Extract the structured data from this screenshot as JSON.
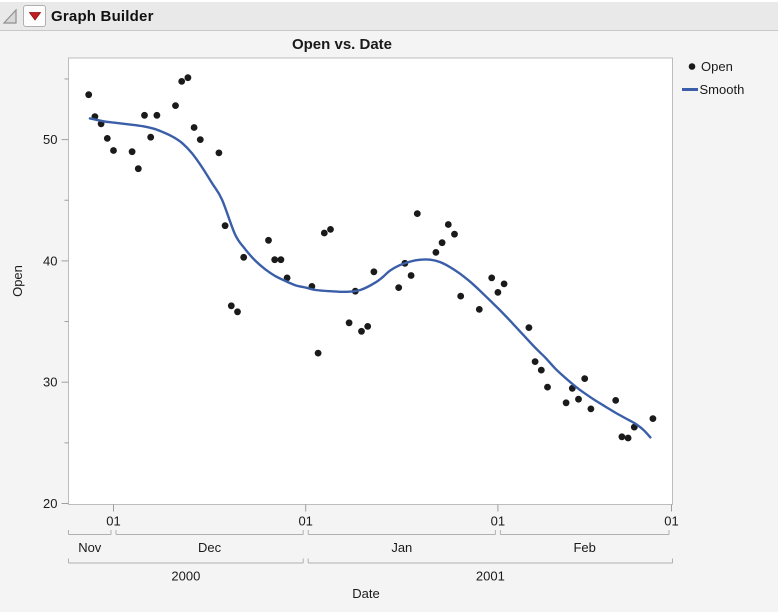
{
  "window": {
    "title": "Graph Builder"
  },
  "chart_data": {
    "type": "scatter",
    "title": "Open vs. Date",
    "xlabel": "Date",
    "ylabel": "Open",
    "x_domain": [
      "2000-11-24",
      "2001-03-01"
    ],
    "ylim": [
      20,
      56.7
    ],
    "grid": "off",
    "legend_position": "right",
    "y_major_ticks": [
      20,
      30,
      40,
      50
    ],
    "y_minor_ticks": [
      25,
      35,
      45,
      55
    ],
    "x_day_ticks": {
      "label": "01",
      "dates": [
        "2000-12-01",
        "2001-01-01",
        "2001-02-01",
        "2001-03-01"
      ]
    },
    "x_month_bands": [
      {
        "label": "Nov",
        "start": "2000-11-24",
        "end": "2000-12-01"
      },
      {
        "label": "Dec",
        "start": "2000-12-01",
        "end": "2001-01-01"
      },
      {
        "label": "Jan",
        "start": "2001-01-01",
        "end": "2001-02-01"
      },
      {
        "label": "Feb",
        "start": "2001-02-01",
        "end": "2001-03-01"
      }
    ],
    "x_year_bands": [
      {
        "label": "2000",
        "start": "2000-11-24",
        "end": "2001-01-01"
      },
      {
        "label": "2001",
        "start": "2001-01-01",
        "end": "2001-03-01"
      }
    ],
    "series": [
      {
        "name": "Open",
        "type": "points",
        "points": [
          [
            "2000-11-27",
            53.7
          ],
          [
            "2000-11-28",
            51.9
          ],
          [
            "2000-11-29",
            51.3
          ],
          [
            "2000-11-30",
            50.1
          ],
          [
            "2000-12-01",
            49.1
          ],
          [
            "2000-12-04",
            49.0
          ],
          [
            "2000-12-05",
            47.6
          ],
          [
            "2000-12-06",
            52.0
          ],
          [
            "2000-12-07",
            50.2
          ],
          [
            "2000-12-08",
            52.0
          ],
          [
            "2000-12-11",
            52.8
          ],
          [
            "2000-12-12",
            54.8
          ],
          [
            "2000-12-13",
            55.1
          ],
          [
            "2000-12-14",
            51.0
          ],
          [
            "2000-12-15",
            50.0
          ],
          [
            "2000-12-18",
            48.9
          ],
          [
            "2000-12-19",
            42.9
          ],
          [
            "2000-12-20",
            36.3
          ],
          [
            "2000-12-21",
            35.8
          ],
          [
            "2000-12-22",
            40.3
          ],
          [
            "2000-12-26",
            41.7
          ],
          [
            "2000-12-27",
            40.1
          ],
          [
            "2000-12-28",
            40.1
          ],
          [
            "2000-12-29",
            38.6
          ],
          [
            "2001-01-02",
            37.9
          ],
          [
            "2001-01-03",
            32.4
          ],
          [
            "2001-01-04",
            42.3
          ],
          [
            "2001-01-05",
            42.6
          ],
          [
            "2001-01-08",
            34.9
          ],
          [
            "2001-01-09",
            37.5
          ],
          [
            "2001-01-10",
            34.2
          ],
          [
            "2001-01-11",
            34.6
          ],
          [
            "2001-01-12",
            39.1
          ],
          [
            "2001-01-16",
            37.8
          ],
          [
            "2001-01-17",
            39.8
          ],
          [
            "2001-01-18",
            38.8
          ],
          [
            "2001-01-19",
            43.9
          ],
          [
            "2001-01-22",
            40.7
          ],
          [
            "2001-01-23",
            41.5
          ],
          [
            "2001-01-24",
            43.0
          ],
          [
            "2001-01-25",
            42.2
          ],
          [
            "2001-01-26",
            37.1
          ],
          [
            "2001-01-29",
            36.0
          ],
          [
            "2001-01-31",
            38.6
          ],
          [
            "2001-02-01",
            37.4
          ],
          [
            "2001-02-02",
            38.1
          ],
          [
            "2001-02-06",
            34.5
          ],
          [
            "2001-02-07",
            31.7
          ],
          [
            "2001-02-08",
            31.0
          ],
          [
            "2001-02-09",
            29.6
          ],
          [
            "2001-02-12",
            28.3
          ],
          [
            "2001-02-13",
            29.5
          ],
          [
            "2001-02-14",
            28.6
          ],
          [
            "2001-02-15",
            30.3
          ],
          [
            "2001-02-16",
            27.8
          ],
          [
            "2001-02-20",
            28.5
          ],
          [
            "2001-02-21",
            25.5
          ],
          [
            "2001-02-22",
            25.4
          ],
          [
            "2001-02-23",
            26.3
          ],
          [
            "2001-02-26",
            27.0
          ]
        ]
      },
      {
        "name": "Smooth",
        "type": "line",
        "curve_days_from_2000_12_01": [
          [
            -3.8,
            51.75
          ],
          [
            -1.5,
            51.5
          ],
          [
            0,
            51.4
          ],
          [
            2.5,
            51.25
          ],
          [
            4.8,
            51.1
          ],
          [
            6.5,
            50.9
          ],
          [
            7.8,
            50.65
          ],
          [
            9.5,
            50.25
          ],
          [
            11.1,
            49.7
          ],
          [
            12.7,
            48.85
          ],
          [
            14.3,
            47.7
          ],
          [
            15.9,
            46.4
          ],
          [
            17.5,
            45.05
          ],
          [
            19.6,
            42.2
          ],
          [
            21.2,
            41.0
          ],
          [
            22.9,
            40.0
          ],
          [
            24.5,
            39.3
          ],
          [
            26.1,
            38.75
          ],
          [
            27.7,
            38.35
          ],
          [
            29.3,
            38.0
          ],
          [
            31,
            37.8
          ],
          [
            32.6,
            37.6
          ],
          [
            35,
            37.5
          ],
          [
            37.5,
            37.45
          ],
          [
            39.8,
            37.6
          ],
          [
            42.2,
            38.2
          ],
          [
            43.5,
            38.7
          ],
          [
            44.6,
            39.2
          ],
          [
            46.2,
            39.65
          ],
          [
            47.9,
            39.95
          ],
          [
            49.5,
            40.1
          ],
          [
            51.1,
            40.1
          ],
          [
            52.7,
            39.9
          ],
          [
            54.4,
            39.45
          ],
          [
            56,
            38.9
          ],
          [
            57.6,
            38.25
          ],
          [
            59.2,
            37.5
          ],
          [
            60.8,
            36.7
          ],
          [
            62.4,
            35.9
          ],
          [
            64,
            35.05
          ],
          [
            66,
            33.95
          ],
          [
            68.1,
            32.8
          ],
          [
            69.7,
            32.0
          ],
          [
            71.3,
            31.1
          ],
          [
            72.9,
            30.35
          ],
          [
            74.5,
            29.65
          ],
          [
            76.1,
            29.05
          ],
          [
            77.7,
            28.5
          ],
          [
            79.3,
            28.0
          ],
          [
            80.9,
            27.5
          ],
          [
            82.5,
            27.05
          ],
          [
            84.1,
            26.6
          ],
          [
            85.4,
            26.1
          ],
          [
            86.6,
            25.45
          ]
        ]
      }
    ]
  },
  "legend": {
    "items": [
      {
        "label": "Open",
        "marker": "dot"
      },
      {
        "label": "Smooth",
        "marker": "line"
      }
    ]
  },
  "colors": {
    "smooth_line": "#3a5fa8",
    "point": "#1a1a1a",
    "axis": "#9f9f9f",
    "plot_border": "#bdbdbd",
    "band_line": "#b0b0b0",
    "text": "#1a1a1a",
    "graph_bg": "#f4f4f5",
    "plot_bg": "#ffffff",
    "titlebar_bg": "#e9e9e9",
    "red_triangle": "#c41e1e"
  }
}
